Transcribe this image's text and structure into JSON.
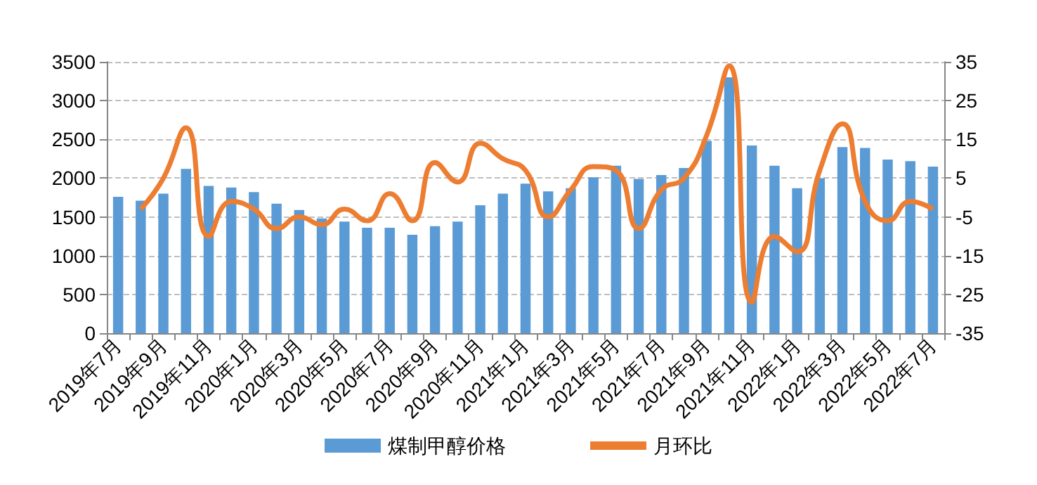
{
  "chart_data": {
    "type": "bar",
    "categories": [
      "2019年7月",
      null,
      "2019年9月",
      null,
      "2019年11月",
      null,
      "2020年1月",
      null,
      "2020年3月",
      null,
      "2020年5月",
      null,
      "2020年7月",
      null,
      "2020年9月",
      null,
      "2020年11月",
      null,
      "2021年1月",
      null,
      "2021年3月",
      null,
      "2021年5月",
      null,
      "2021年7月",
      null,
      "2021年9月",
      null,
      "2021年11月",
      null,
      "2022年1月",
      null,
      "2022年3月",
      null,
      "2022年5月",
      null,
      "2022年7月"
    ],
    "series": [
      {
        "name": "煤制甲醇价格",
        "color": "#5b9bd5",
        "values": [
          1760,
          1710,
          1800,
          2120,
          1900,
          1880,
          1820,
          1670,
          1590,
          1480,
          1440,
          1360,
          1360,
          1270,
          1380,
          1440,
          1650,
          1800,
          1930,
          1830,
          1870,
          2010,
          2160,
          1990,
          2040,
          2130,
          2480,
          3300,
          2420,
          2160,
          1870,
          2000,
          2400,
          2390,
          2240,
          2220,
          2150
        ]
      },
      {
        "name": "月环比",
        "type": "line",
        "axis": "y2",
        "color": "#ed7d31",
        "values": [
          null,
          -3,
          5,
          18,
          -10,
          -1,
          -3,
          -8,
          -5,
          -7,
          -3,
          -6,
          1,
          -6,
          9,
          4,
          14,
          10,
          7,
          -5,
          2,
          8,
          7,
          -8,
          2,
          5,
          16,
          34,
          -27,
          -10,
          -14,
          7,
          19,
          -1,
          -6,
          -1,
          -3
        ]
      }
    ],
    "ylim": [
      0,
      3500
    ],
    "yticks": [
      0,
      500,
      1000,
      1500,
      2000,
      2500,
      3000,
      3500
    ],
    "y2lim": [
      -35,
      35
    ],
    "y2ticks": [
      -35,
      -25,
      -15,
      -5,
      5,
      15,
      25,
      35
    ],
    "grid": "y",
    "legend": "bottom",
    "marker": "none"
  }
}
